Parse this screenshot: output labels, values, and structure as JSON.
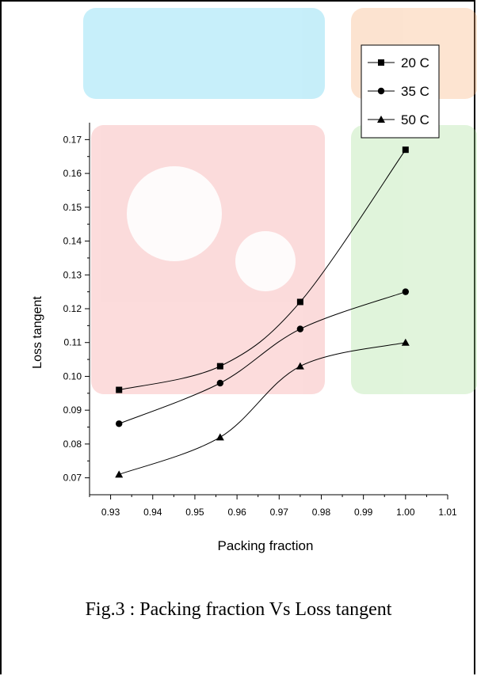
{
  "chart_data": {
    "type": "line",
    "xlabel": "Packing fraction",
    "ylabel": "Loss tangent",
    "xlim": [
      0.925,
      1.01
    ],
    "ylim": [
      0.065,
      0.175
    ],
    "x_ticks": [
      "0.93",
      "0.94",
      "0.95",
      "0.96",
      "0.97",
      "0.98",
      "0.99",
      "1.00",
      "1.01"
    ],
    "y_ticks": [
      "0.07",
      "0.08",
      "0.09",
      "0.10",
      "0.11",
      "0.12",
      "0.13",
      "0.14",
      "0.15",
      "0.16",
      "0.17"
    ],
    "legend_position": "top-right",
    "grid": false,
    "series": [
      {
        "name": "20 C",
        "marker": "square",
        "x": [
          0.932,
          0.956,
          0.975,
          1.0
        ],
        "y": [
          0.096,
          0.103,
          0.122,
          0.167
        ]
      },
      {
        "name": "35 C",
        "marker": "circle",
        "x": [
          0.932,
          0.956,
          0.975,
          1.0
        ],
        "y": [
          0.086,
          0.098,
          0.114,
          0.125
        ]
      },
      {
        "name": "50 C",
        "marker": "triangle",
        "x": [
          0.932,
          0.956,
          0.975,
          1.0
        ],
        "y": [
          0.071,
          0.082,
          0.103,
          0.11
        ]
      }
    ]
  },
  "caption": "Fig.3 : Packing fraction Vs Loss tangent",
  "colors": {
    "line": "#000000",
    "watermark_blue": "#5fd0f0",
    "watermark_orange": "#f9c79a",
    "watermark_red": "#f7b6b6",
    "watermark_green": "#c9ecc0"
  }
}
